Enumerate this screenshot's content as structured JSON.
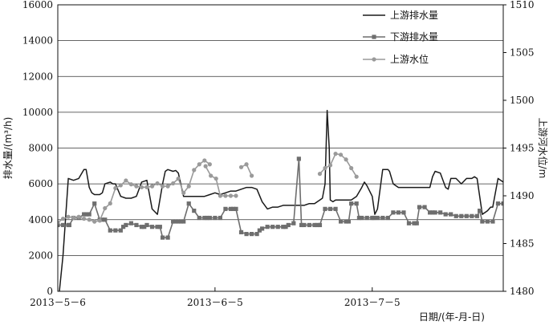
{
  "chart_data": {
    "type": "line",
    "xlabel": "日期/(年-月-日)",
    "ylabel_left": "排水量/(m³/h)",
    "ylabel_right": "上游河水位/m",
    "x_tick_labels": [
      "2013－5－6",
      "2013－6－5",
      "2013－7－5"
    ],
    "x_tick_days": [
      0,
      30,
      60
    ],
    "xlim_days": [
      0,
      85
    ],
    "ylim_left": [
      0,
      16000
    ],
    "yticks_left": [
      0,
      2000,
      4000,
      6000,
      8000,
      10000,
      12000,
      14000,
      16000
    ],
    "ylim_right": [
      1480,
      1510
    ],
    "yticks_right": [
      1480,
      1485,
      1490,
      1495,
      1500,
      1505,
      1510
    ],
    "grid": "horizontal",
    "legend_position": "top-right",
    "colors": {
      "upstream_discharge": "#1a1a1a",
      "downstream_discharge": "#6e6e6e",
      "upstream_level": "#9a9a9a"
    },
    "series": [
      {
        "name": "上游排水量",
        "axis": "left",
        "marker": "none",
        "x": [
          0,
          0.3,
          1,
          2,
          3,
          4,
          5,
          5.4,
          6,
          6.5,
          7,
          8,
          8.5,
          9,
          10,
          10.5,
          11,
          12,
          13,
          14,
          15,
          16,
          17,
          18,
          19,
          20,
          20.5,
          21,
          22,
          22.5,
          23,
          24,
          25,
          26,
          27,
          28,
          29,
          30,
          31,
          32,
          33,
          34,
          35,
          36,
          37,
          38,
          39,
          40,
          41,
          42,
          43,
          44,
          45,
          46,
          47,
          48,
          49,
          50,
          50.5,
          51,
          51.4,
          51.8,
          52,
          52.5,
          53,
          54,
          55,
          56,
          57,
          58,
          58.5,
          59,
          60,
          60.5,
          61,
          62,
          63,
          63.3,
          64,
          65,
          66,
          67,
          68,
          69,
          70,
          71,
          71.5,
          72,
          73,
          74,
          74.5,
          75,
          76,
          77,
          78,
          79,
          79.5,
          80,
          81,
          82,
          82.6,
          83,
          84,
          85
        ],
        "values": [
          -1000,
          0,
          2000,
          6300,
          6200,
          6300,
          6800,
          6800,
          5800,
          5500,
          5400,
          5400,
          5500,
          6000,
          6100,
          6000,
          6000,
          5300,
          5200,
          5200,
          5300,
          6100,
          6200,
          4600,
          4300,
          6000,
          6700,
          6800,
          6700,
          6750,
          6600,
          5300,
          5300,
          5300,
          5300,
          5300,
          5400,
          5500,
          5400,
          5500,
          5600,
          5600,
          5700,
          5800,
          5800,
          5700,
          5000,
          4600,
          4700,
          4700,
          4800,
          4800,
          4800,
          4800,
          4800,
          4900,
          4900,
          5100,
          5200,
          6000,
          10100,
          8000,
          5100,
          5000,
          5100,
          5100,
          5100,
          5100,
          5300,
          5800,
          6100,
          5900,
          5300,
          4300,
          4600,
          6800,
          6800,
          6700,
          6000,
          5800,
          5800,
          5800,
          5800,
          5800,
          5800,
          5800,
          6400,
          6700,
          6600,
          5800,
          5700,
          6300,
          6300,
          6000,
          6300,
          6300,
          6400,
          6300,
          4300,
          4500,
          4700,
          4700,
          6300,
          6100
        ]
      },
      {
        "name": "下游排水量",
        "axis": "left",
        "marker": "square",
        "x": [
          0,
          1,
          2,
          2.2,
          3,
          4,
          5,
          5.5,
          6,
          7,
          8,
          8.5,
          9,
          10,
          11,
          12,
          12.5,
          13,
          14,
          15,
          16,
          16.5,
          17,
          18,
          19,
          19.5,
          20,
          21,
          22,
          22.5,
          23,
          23.5,
          24,
          25,
          26,
          27,
          28,
          28.5,
          29,
          30,
          31,
          32,
          33,
          33.5,
          34,
          35,
          36,
          37,
          38,
          38.5,
          39,
          40,
          41,
          42,
          43,
          43.5,
          44,
          45,
          46,
          46.5,
          47,
          48,
          49,
          49.5,
          50,
          51,
          52,
          53,
          54,
          55,
          55.5,
          56,
          57,
          57.5,
          58,
          59,
          60,
          60.3,
          61,
          62,
          63,
          64,
          65,
          66,
          67,
          68,
          68.5,
          69,
          70,
          71,
          71.5,
          72,
          73,
          74,
          75,
          76,
          77,
          78,
          79,
          80,
          80.5,
          81,
          82,
          83,
          84,
          85
        ],
        "values": [
          3700,
          3700,
          3700,
          3700,
          4100,
          4100,
          4300,
          4300,
          4300,
          4900,
          4000,
          4000,
          4000,
          3400,
          3400,
          3400,
          3600,
          3700,
          3800,
          3700,
          3600,
          3600,
          3700,
          3600,
          3600,
          3600,
          3000,
          3000,
          3900,
          3900,
          3900,
          3900,
          3900,
          4900,
          4500,
          4100,
          4100,
          4100,
          4100,
          4100,
          4100,
          4600,
          4600,
          4600,
          4600,
          3300,
          3200,
          3200,
          3200,
          3400,
          3500,
          3600,
          3600,
          3600,
          3600,
          3600,
          3700,
          3800,
          7400,
          3700,
          3700,
          3700,
          3700,
          3700,
          3700,
          4600,
          4600,
          4600,
          3900,
          3900,
          3900,
          4900,
          4900,
          4100,
          4100,
          4100,
          4100,
          4100,
          4100,
          4100,
          4100,
          4400,
          4400,
          4400,
          3800,
          3800,
          3800,
          4700,
          4700,
          4400,
          4400,
          4400,
          4400,
          4300,
          4300,
          4200,
          4200,
          4200,
          4200,
          4200,
          4500,
          3900,
          3900,
          3900,
          4900,
          4900
        ]
      },
      {
        "name": "上游水位",
        "axis": "right",
        "marker": "circle",
        "segments": [
          {
            "x": [
              0,
              1,
              2,
              3,
              4,
              5,
              6,
              7,
              8,
              9,
              10,
              11,
              12,
              13,
              14,
              15,
              16,
              17,
              18,
              19,
              20,
              21,
              22,
              23,
              24,
              25,
              26,
              27,
              28,
              29
            ],
            "values": [
              1487.2,
              1487.6,
              1487.8,
              1487.7,
              1487.8,
              1487.6,
              1487.5,
              1487.3,
              1487.4,
              1488.7,
              1489.2,
              1490.8,
              1491.1,
              1491.6,
              1491.2,
              1491.0,
              1490.9,
              1490.9,
              1491.0,
              1491.3,
              1491.0,
              1491.0,
              1491.3,
              1491.8,
              1490.3,
              1491.0,
              1492.7,
              1493.3,
              1493.7,
              1493.3
            ]
          },
          {
            "x": [
              28.2,
              29.2,
              30.2,
              31,
              32,
              33,
              34
            ],
            "values": [
              1493.1,
              1492.1,
              1491.8,
              1490.0,
              1490.0,
              1490.0,
              1490.0
            ]
          },
          {
            "x": [
              35,
              36,
              37
            ],
            "values": [
              1493.0,
              1493.3,
              1492.1
            ]
          },
          {
            "x": [
              50,
              51,
              52,
              53,
              54,
              55,
              56,
              57
            ],
            "values": [
              1492.3,
              1492.9,
              1493.2,
              1494.4,
              1494.3,
              1493.8,
              1492.9,
              1492.0
            ]
          }
        ]
      }
    ]
  }
}
